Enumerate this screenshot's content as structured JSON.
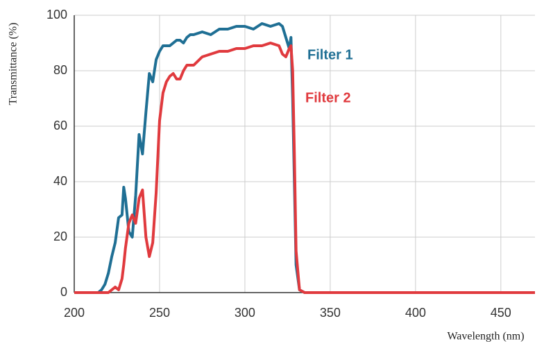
{
  "chart_data": {
    "type": "line",
    "x_label": "Wavelength (nm)",
    "y_label": "Transmittance (%)",
    "xlim": [
      200,
      470
    ],
    "xticks": [
      200,
      250,
      300,
      350,
      400,
      450
    ],
    "ylim": [
      0,
      100
    ],
    "yticks": [
      0,
      20,
      40,
      60,
      80,
      100
    ],
    "grid": true,
    "x": [
      200,
      210,
      214,
      216,
      218,
      220,
      222,
      224,
      226,
      228,
      229,
      230,
      232,
      234,
      236,
      238,
      240,
      242,
      244,
      246,
      248,
      250,
      252,
      254,
      256,
      258,
      260,
      262,
      264,
      266,
      268,
      270,
      275,
      280,
      285,
      290,
      295,
      300,
      305,
      310,
      315,
      320,
      322,
      324,
      326,
      327,
      328,
      329,
      330,
      332,
      335,
      340,
      350,
      400,
      450,
      470
    ],
    "series": [
      {
        "name": "Filter 1",
        "color": "#1f6f94",
        "values": [
          0,
          0,
          0,
          1,
          3,
          7,
          13,
          18,
          27,
          28,
          38,
          34,
          22,
          20,
          35,
          57,
          50,
          65,
          79,
          76,
          84,
          87,
          89,
          89,
          89,
          90,
          91,
          91,
          90,
          92,
          93,
          93,
          94,
          93,
          95,
          95,
          96,
          96,
          95,
          97,
          96,
          97,
          96,
          92,
          88,
          92,
          70,
          40,
          10,
          1,
          0,
          0,
          0,
          0,
          0,
          0
        ]
      },
      {
        "name": "Filter 2",
        "color": "#e03a3e",
        "values": [
          0,
          0,
          0,
          0,
          0,
          0,
          1,
          2,
          1,
          5,
          10,
          16,
          25,
          28,
          25,
          34,
          37,
          20,
          13,
          18,
          36,
          62,
          72,
          76,
          78,
          79,
          77,
          77,
          80,
          82,
          82,
          82,
          85,
          86,
          87,
          87,
          88,
          88,
          89,
          89,
          90,
          89,
          86,
          85,
          88,
          89,
          80,
          50,
          15,
          1,
          0,
          0,
          0,
          0,
          0,
          0
        ]
      }
    ]
  }
}
